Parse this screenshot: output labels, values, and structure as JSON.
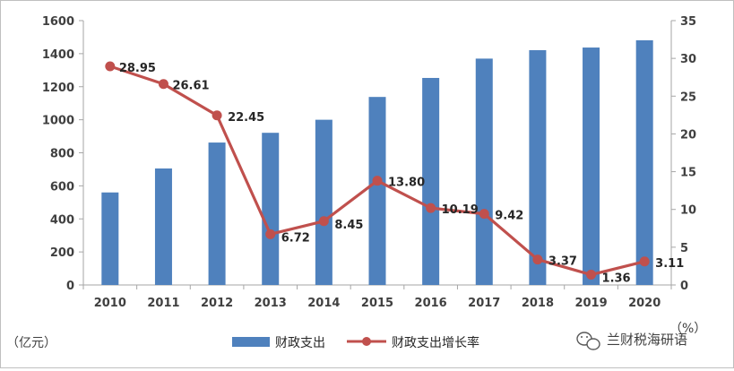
{
  "chart_data": {
    "type": "bar+line",
    "categories": [
      "2010",
      "2011",
      "2012",
      "2013",
      "2014",
      "2015",
      "2016",
      "2017",
      "2018",
      "2019",
      "2020"
    ],
    "series": [
      {
        "name": "财政支出",
        "type": "bar",
        "axis": "left",
        "color": "#4f81bd",
        "values": [
          560,
          705,
          862,
          921,
          1000,
          1138,
          1253,
          1370,
          1421,
          1437,
          1481
        ]
      },
      {
        "name": "财政支出增长率",
        "type": "line",
        "axis": "right",
        "color": "#c0504d",
        "values": [
          28.95,
          26.61,
          22.45,
          6.72,
          8.45,
          13.8,
          10.19,
          9.42,
          3.37,
          1.36,
          3.11
        ],
        "labels": [
          "28.95",
          "26.61",
          "22.45",
          "6.72",
          "8.45",
          "13.80",
          "10.19",
          "9.42",
          "3.37",
          "1.36",
          "3.11"
        ]
      }
    ],
    "y_left": {
      "min": 0,
      "max": 1600,
      "ticks": [
        "0",
        "200",
        "400",
        "600",
        "800",
        "1000",
        "1200",
        "1400",
        "1600"
      ],
      "unit_label": "（亿元）"
    },
    "y_right": {
      "min": 0,
      "max": 35,
      "ticks": [
        "0",
        "5",
        "10",
        "15",
        "20",
        "25",
        "30",
        "35"
      ],
      "unit_label": "（%）"
    },
    "title": "",
    "grid": false,
    "legend_position": "bottom"
  },
  "watermark": {
    "text": "兰财税海研语",
    "icon": "wechat-icon"
  }
}
